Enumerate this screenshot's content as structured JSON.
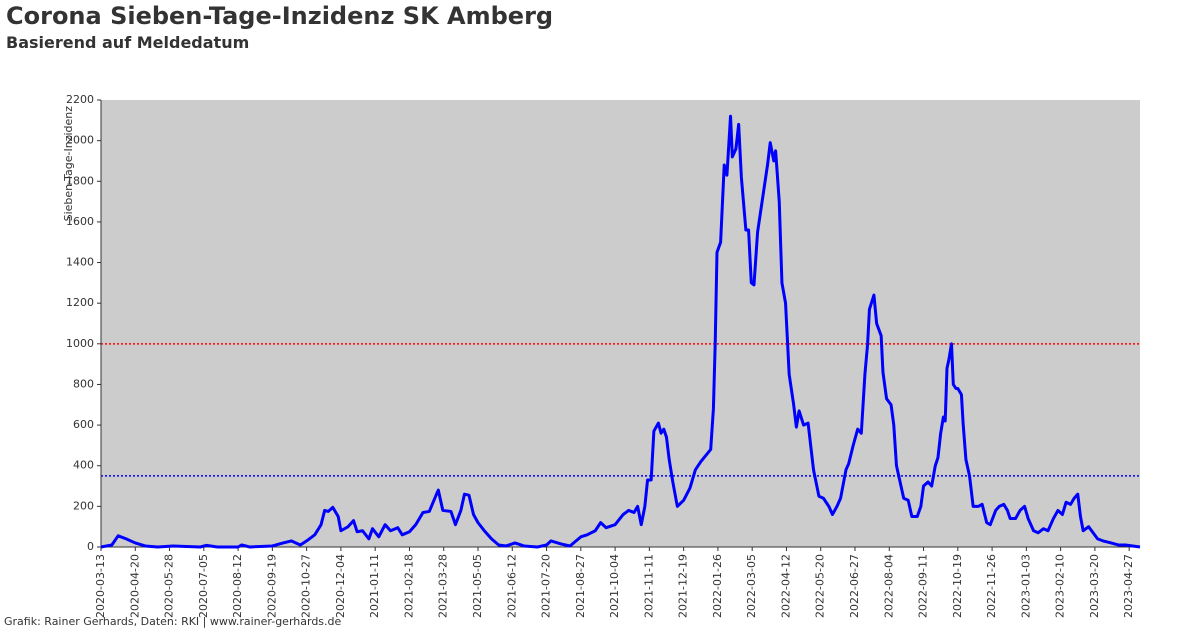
{
  "chart_data": {
    "type": "line",
    "title": "Corona Sieben-Tage-Inzidenz SK Amberg",
    "subtitle": "Basierend auf Meldedatum",
    "y_label": "Sieben-Tage-Inzidenz",
    "footer": "Grafik: Rainer Gerhards, Daten: RKI | www.rainer-gerhards.de",
    "x": [
      "2020-03-13",
      "2020-03-25",
      "2020-04-01",
      "2020-04-10",
      "2020-04-20",
      "2020-05-01",
      "2020-05-15",
      "2020-06-01",
      "2020-07-01",
      "2020-07-08",
      "2020-07-20",
      "2020-08-12",
      "2020-08-16",
      "2020-08-25",
      "2020-09-19",
      "2020-10-01",
      "2020-10-10",
      "2020-10-20",
      "2020-10-27",
      "2020-11-05",
      "2020-11-12",
      "2020-11-16",
      "2020-11-20",
      "2020-11-25",
      "2020-12-01",
      "2020-12-04",
      "2020-12-12",
      "2020-12-18",
      "2020-12-22",
      "2020-12-28",
      "2021-01-04",
      "2021-01-08",
      "2021-01-15",
      "2021-01-22",
      "2021-01-28",
      "2021-02-05",
      "2021-02-10",
      "2021-02-18",
      "2021-02-25",
      "2021-03-05",
      "2021-03-12",
      "2021-03-20",
      "2021-03-22",
      "2021-03-27",
      "2021-04-05",
      "2021-04-10",
      "2021-04-16",
      "2021-04-20",
      "2021-04-25",
      "2021-04-30",
      "2021-05-05",
      "2021-05-12",
      "2021-05-20",
      "2021-05-28",
      "2021-06-05",
      "2021-06-15",
      "2021-06-25",
      "2021-07-10",
      "2021-07-20",
      "2021-07-25",
      "2021-08-05",
      "2021-08-15",
      "2021-08-27",
      "2021-09-03",
      "2021-09-12",
      "2021-09-18",
      "2021-09-24",
      "2021-10-04",
      "2021-10-13",
      "2021-10-19",
      "2021-10-25",
      "2021-10-29",
      "2021-11-02",
      "2021-11-06",
      "2021-11-09",
      "2021-11-13",
      "2021-11-16",
      "2021-11-21",
      "2021-11-24",
      "2021-11-27",
      "2021-11-30",
      "2021-12-03",
      "2021-12-07",
      "2021-12-12",
      "2021-12-19",
      "2021-12-26",
      "2022-01-01",
      "2022-01-07",
      "2022-01-18",
      "2022-01-21",
      "2022-01-23",
      "2022-01-25",
      "2022-01-29",
      "2022-02-02",
      "2022-02-05",
      "2022-02-09",
      "2022-02-11",
      "2022-02-15",
      "2022-02-18",
      "2022-02-21",
      "2022-02-26",
      "2022-03-01",
      "2022-03-04",
      "2022-03-07",
      "2022-03-11",
      "2022-03-16",
      "2022-03-22",
      "2022-03-25",
      "2022-03-29",
      "2022-03-31",
      "2022-04-04",
      "2022-04-07",
      "2022-04-11",
      "2022-04-15",
      "2022-04-20",
      "2022-04-23",
      "2022-04-26",
      "2022-05-01",
      "2022-05-06",
      "2022-05-12",
      "2022-05-18",
      "2022-05-23",
      "2022-05-29",
      "2022-06-02",
      "2022-06-07",
      "2022-06-11",
      "2022-06-17",
      "2022-06-20",
      "2022-06-25",
      "2022-06-30",
      "2022-07-04",
      "2022-07-08",
      "2022-07-11",
      "2022-07-13",
      "2022-07-18",
      "2022-07-21",
      "2022-07-26",
      "2022-07-28",
      "2022-08-01",
      "2022-08-06",
      "2022-08-09",
      "2022-08-12",
      "2022-08-17",
      "2022-08-20",
      "2022-08-25",
      "2022-08-29",
      "2022-09-04",
      "2022-09-08",
      "2022-09-11",
      "2022-09-16",
      "2022-09-20",
      "2022-09-24",
      "2022-09-27",
      "2022-09-30",
      "2022-10-03",
      "2022-10-05",
      "2022-10-07",
      "2022-10-09",
      "2022-10-12",
      "2022-10-14",
      "2022-10-17",
      "2022-10-19",
      "2022-10-23",
      "2022-10-25",
      "2022-10-28",
      "2022-11-01",
      "2022-11-05",
      "2022-11-11",
      "2022-11-15",
      "2022-11-20",
      "2022-11-24",
      "2022-11-30",
      "2022-12-04",
      "2022-12-09",
      "2022-12-13",
      "2022-12-16",
      "2022-12-22",
      "2022-12-27",
      "2023-01-01",
      "2023-01-05",
      "2023-01-11",
      "2023-01-16",
      "2023-01-22",
      "2023-01-27",
      "2023-02-02",
      "2023-02-07",
      "2023-02-12",
      "2023-02-16",
      "2023-02-21",
      "2023-02-25",
      "2023-03-01",
      "2023-03-04",
      "2023-03-07",
      "2023-03-13",
      "2023-03-18",
      "2023-03-23",
      "2023-03-29",
      "2023-04-07",
      "2023-04-15",
      "2023-04-23",
      "2023-05-01",
      "2023-05-09"
    ],
    "series": [
      {
        "name": "Sieben-Tage-Inzidenz",
        "color": "#0000ff",
        "values": [
          0,
          10,
          55,
          40,
          20,
          5,
          0,
          5,
          0,
          8,
          0,
          0,
          10,
          0,
          5,
          20,
          30,
          10,
          30,
          60,
          110,
          180,
          175,
          195,
          150,
          80,
          100,
          130,
          75,
          80,
          40,
          90,
          50,
          110,
          80,
          95,
          60,
          75,
          110,
          170,
          175,
          260,
          280,
          180,
          175,
          110,
          180,
          260,
          255,
          160,
          120,
          80,
          40,
          10,
          5,
          20,
          5,
          0,
          10,
          30,
          15,
          5,
          50,
          60,
          80,
          120,
          95,
          110,
          160,
          180,
          170,
          200,
          110,
          200,
          330,
          330,
          570,
          610,
          560,
          580,
          540,
          430,
          320,
          200,
          230,
          290,
          380,
          420,
          480,
          680,
          1000,
          1450,
          1500,
          1880,
          1830,
          2120,
          1920,
          1960,
          2080,
          1820,
          1560,
          1560,
          1300,
          1290,
          1550,
          1700,
          1880,
          1990,
          1900,
          1950,
          1700,
          1300,
          1200,
          850,
          700,
          590,
          670,
          600,
          610,
          380,
          250,
          240,
          200,
          160,
          200,
          240,
          380,
          410,
          500,
          580,
          560,
          850,
          1000,
          1170,
          1240,
          1100,
          1040,
          860,
          730,
          700,
          600,
          400,
          300,
          240,
          230,
          150,
          150,
          200,
          300,
          320,
          300,
          400,
          440,
          560,
          640,
          620,
          880,
          920,
          1000,
          800,
          780,
          780,
          750,
          600,
          430,
          350,
          200,
          200,
          210,
          120,
          110,
          180,
          200,
          210,
          180,
          140,
          140,
          180,
          200,
          140,
          80,
          70,
          90,
          80,
          140,
          180,
          160,
          220,
          210,
          240,
          260,
          150,
          80,
          100,
          70,
          40,
          30,
          20,
          10,
          10,
          5,
          0
        ]
      }
    ],
    "reference_lines": [
      {
        "value": 1000,
        "color": "#ff0000"
      },
      {
        "value": 350,
        "color": "#0000ff"
      }
    ],
    "xlim": [
      "2020-03-13",
      "2023-05-09"
    ],
    "xticks": [
      "2020-03-13",
      "2020-04-20",
      "2020-05-28",
      "2020-07-05",
      "2020-08-12",
      "2020-09-19",
      "2020-10-27",
      "2020-12-04",
      "2021-01-11",
      "2021-02-18",
      "2021-03-28",
      "2021-05-05",
      "2021-06-12",
      "2021-07-20",
      "2021-08-27",
      "2021-10-04",
      "2021-11-11",
      "2021-12-19",
      "2022-01-26",
      "2022-03-05",
      "2022-04-12",
      "2022-05-20",
      "2022-06-27",
      "2022-08-04",
      "2022-09-11",
      "2022-10-19",
      "2022-11-26",
      "2023-01-03",
      "2023-02-10",
      "2023-03-20",
      "2023-04-27"
    ],
    "ylim": [
      0,
      2200
    ],
    "yticks": [
      0,
      200,
      400,
      600,
      800,
      1000,
      1200,
      1400,
      1600,
      1800,
      2000,
      2200
    ],
    "plot_background": "#cccccc"
  }
}
